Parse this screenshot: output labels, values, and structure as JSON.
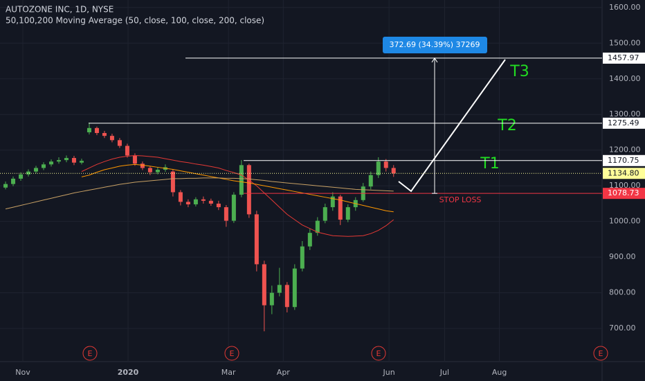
{
  "chart_data": {
    "type": "candlestick",
    "title": "AUTOZONE INC, 1D, NYSE",
    "subtitle": "50,100,200 Moving Average (50, close, 100, close, 200, close)",
    "x": [
      0,
      1,
      2,
      3,
      4,
      5,
      6,
      7,
      8,
      9,
      10,
      11,
      12,
      13,
      14,
      15,
      16,
      17,
      18,
      19,
      20,
      21,
      22,
      23,
      24,
      25,
      26,
      27,
      28,
      29,
      30,
      31,
      32,
      33,
      34,
      35,
      36,
      37,
      38,
      39,
      40,
      41,
      42,
      43,
      44,
      45,
      46,
      47,
      48,
      49,
      50,
      51
    ],
    "ohlc": {
      "open": [
        1095,
        1105,
        1120,
        1132,
        1140,
        1150,
        1160,
        1168,
        1172,
        1178,
        1165,
        1250,
        1262,
        1248,
        1240,
        1228,
        1212,
        1185,
        1162,
        1150,
        1138,
        1145,
        1140,
        1082,
        1055,
        1048,
        1062,
        1058,
        1050,
        1040,
        1002,
        1075,
        1158,
        1020,
        880,
        765,
        800,
        822,
        760,
        868,
        930,
        968,
        1002,
        1040,
        1070,
        1005,
        1040,
        1060,
        1098,
        1130,
        1168,
        1150
      ],
      "high": [
        1112,
        1126,
        1138,
        1146,
        1156,
        1166,
        1174,
        1180,
        1185,
        1184,
        1176,
        1277,
        1266,
        1254,
        1246,
        1234,
        1218,
        1191,
        1168,
        1156,
        1152,
        1160,
        1146,
        1088,
        1062,
        1068,
        1070,
        1064,
        1058,
        1046,
        1082,
        1172,
        1162,
        1030,
        890,
        820,
        870,
        830,
        880,
        945,
        980,
        1012,
        1050,
        1082,
        1075,
        1048,
        1068,
        1108,
        1140,
        1180,
        1175,
        1158
      ],
      "low": [
        1090,
        1099,
        1114,
        1126,
        1134,
        1144,
        1154,
        1162,
        1166,
        1158,
        1160,
        1244,
        1242,
        1234,
        1222,
        1206,
        1179,
        1156,
        1144,
        1130,
        1132,
        1139,
        1070,
        1045,
        1040,
        1042,
        1050,
        1044,
        1032,
        985,
        996,
        1068,
        1010,
        860,
        692,
        740,
        790,
        745,
        752,
        860,
        920,
        960,
        995,
        1030,
        990,
        998,
        1030,
        1055,
        1090,
        1122,
        1140,
        1125
      ],
      "close": [
        1105,
        1120,
        1132,
        1140,
        1150,
        1160,
        1168,
        1172,
        1178,
        1165,
        1170,
        1262,
        1248,
        1240,
        1228,
        1212,
        1185,
        1162,
        1150,
        1138,
        1145,
        1152,
        1082,
        1055,
        1048,
        1062,
        1058,
        1050,
        1040,
        1002,
        1075,
        1158,
        1020,
        880,
        765,
        800,
        822,
        760,
        868,
        930,
        968,
        1002,
        1040,
        1070,
        1005,
        1040,
        1060,
        1098,
        1130,
        1168,
        1150,
        1135
      ],
      "up_color": "#4caf50",
      "down_color": "#ef5350"
    },
    "series": [
      {
        "color": "#e53935",
        "values": [
          null,
          null,
          null,
          null,
          null,
          null,
          null,
          null,
          null,
          null,
          1140,
          1150,
          1160,
          1168,
          1175,
          1180,
          1183,
          1185,
          1184,
          1182,
          1180,
          1176,
          1172,
          1168,
          1165,
          1161,
          1158,
          1154,
          1150,
          1143,
          1137,
          1130,
          1116,
          1100,
          1080,
          1060,
          1040,
          1020,
          1005,
          990,
          980,
          970,
          965,
          960,
          959,
          958,
          959,
          960,
          966,
          975,
          988,
          1005
        ]
      },
      {
        "color": "#ff9800",
        "values": [
          null,
          null,
          null,
          null,
          null,
          null,
          null,
          null,
          null,
          null,
          1125,
          1130,
          1138,
          1145,
          1150,
          1155,
          1158,
          1160,
          1158,
          1155,
          1152,
          1149,
          1146,
          1142,
          1138,
          1134,
          1130,
          1126,
          1122,
          1118,
          1114,
          1111,
          1108,
          1104,
          1100,
          1096,
          1092,
          1088,
          1084,
          1080,
          1076,
          1072,
          1068,
          1064,
          1060,
          1055,
          1050,
          1045,
          1040,
          1035,
          1030,
          1027
        ]
      },
      {
        "color": "#c8a165",
        "values": [
          1035,
          1040,
          1045,
          1050,
          1055,
          1060,
          1065,
          1070,
          1075,
          1080,
          1084,
          1088,
          1092,
          1096,
          1100,
          1104,
          1107,
          1110,
          1112,
          1114,
          1116,
          1118,
          1120,
          1120,
          1121,
          1121,
          1122,
          1122,
          1122,
          1121,
          1121,
          1120,
          1119,
          1117,
          1115,
          1112,
          1110,
          1108,
          1106,
          1104,
          1102,
          1100,
          1098,
          1096,
          1094,
          1092,
          1090,
          1089,
          1088,
          1087,
          1086,
          1085
        ]
      }
    ],
    "xlim": [
      -0.73,
      78.4
    ],
    "ylim": [
      607,
      1621
    ],
    "xticks": [
      {
        "value": 2.27,
        "label": "Nov"
      },
      {
        "value": 16.1,
        "label": "2020"
      },
      {
        "value": 29.3,
        "label": "Mar"
      },
      {
        "value": 36.5,
        "label": "Apr"
      },
      {
        "value": 50.4,
        "label": "Jun"
      },
      {
        "value": 57.7,
        "label": "Jul"
      },
      {
        "value": 64.9,
        "label": "Aug"
      }
    ],
    "yticks": [
      {
        "value": 700,
        "label": "700.00"
      },
      {
        "value": 800,
        "label": "800.00"
      },
      {
        "value": 900,
        "label": "900.00"
      },
      {
        "value": 1000,
        "label": "1000.00"
      },
      {
        "value": 1100,
        "label": "1100.00"
      },
      {
        "value": 1200,
        "label": "1200.00"
      },
      {
        "value": 1300,
        "label": "1300.00"
      },
      {
        "value": 1400,
        "label": "1400.00"
      },
      {
        "value": 1500,
        "label": "1500.00"
      },
      {
        "value": 1600,
        "label": "1600.00"
      }
    ],
    "grid": true,
    "levels": [
      {
        "value": 1457.97,
        "label": "1457.97",
        "color": "#ffffff"
      },
      {
        "value": 1275.49,
        "label": "1275.49",
        "color": "#ffffff"
      },
      {
        "value": 1170.75,
        "label": "1170.75",
        "color": "#ffffff"
      },
      {
        "value": 1078.73,
        "label": "1078.73",
        "color": "#f23645"
      }
    ],
    "current_price": {
      "value": 1134.8,
      "label": "1134.80",
      "color": "#ffff99"
    },
    "measure": "372.69 (34.39%) 37269",
    "annotations": [
      "T1",
      "T2",
      "T3",
      "STOP LOSS"
    ],
    "events": [
      "E",
      "E",
      "E",
      "E"
    ]
  }
}
